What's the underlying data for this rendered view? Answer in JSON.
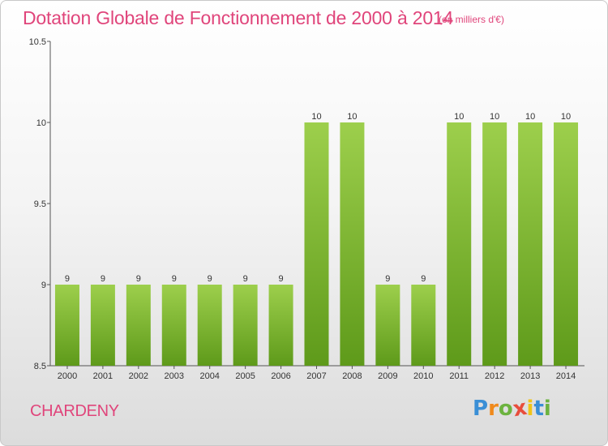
{
  "header": {
    "title": "Dotation Globale de Fonctionnement de 2000 à 2014",
    "subtitle": "(en milliers d'€)"
  },
  "footer": {
    "commune": "CHARDENY",
    "logo_letters": [
      {
        "ch": "P",
        "color": "#3a8fd6"
      },
      {
        "ch": "r",
        "color": "#f08a1c"
      },
      {
        "ch": "o",
        "color": "#6cb33f"
      },
      {
        "ch": "x",
        "color": "#e84d3c"
      },
      {
        "ch": "i",
        "color": "#f0c419"
      },
      {
        "ch": "t",
        "color": "#3a8fd6"
      },
      {
        "ch": "i",
        "color": "#6cb33f"
      }
    ]
  },
  "chart_data": {
    "type": "bar",
    "title": "Dotation Globale de Fonctionnement de 2000 à 2014",
    "subtitle": "(en milliers d'€)",
    "categories": [
      "2000",
      "2001",
      "2002",
      "2003",
      "2004",
      "2005",
      "2006",
      "2007",
      "2008",
      "2009",
      "2010",
      "2011",
      "2012",
      "2013",
      "2014"
    ],
    "values": [
      9,
      9,
      9,
      9,
      9,
      9,
      9,
      10,
      10,
      9,
      9,
      10,
      10,
      10,
      10
    ],
    "data_labels": [
      "9",
      "9",
      "9",
      "9",
      "9",
      "9",
      "9",
      "10",
      "10",
      "9",
      "9",
      "10",
      "10",
      "10",
      "10"
    ],
    "ylim": [
      8.5,
      10.5
    ],
    "yticks": [
      8.5,
      9,
      9.5,
      10,
      10.5
    ],
    "ytick_labels": [
      "8.5",
      "9",
      "9.5",
      "10",
      "10.5"
    ],
    "grid": false,
    "bar_color_top": "#9dcf4c",
    "bar_color_bottom": "#5e9a1a"
  }
}
